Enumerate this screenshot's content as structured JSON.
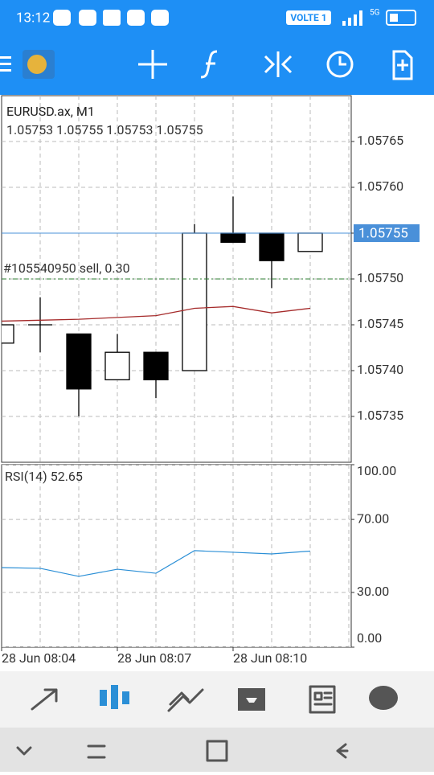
{
  "status_bar": {
    "time": "13:12",
    "network": "VOLTE 1",
    "signal": "5G"
  },
  "chart_data": [
    {
      "type": "candlestick",
      "title": "EURUSD.ax, M1",
      "subtitle": "1.05753 1.05755 1.05753 1.05755",
      "categories": [
        "28 Jun 08:04",
        null,
        null,
        "28 Jun 08:07",
        null,
        null,
        "28 Jun 08:10",
        null,
        null
      ],
      "open": [
        1.05743,
        1.05745,
        1.05744,
        1.05739,
        1.05742,
        1.0574,
        1.05755,
        1.05755,
        1.05753
      ],
      "high": [
        1.05745,
        1.05748,
        1.05744,
        1.05744,
        1.05742,
        1.05756,
        1.05759,
        1.05755,
        1.05755
      ],
      "low": [
        1.05743,
        1.05742,
        1.05735,
        1.05739,
        1.05737,
        1.0574,
        1.05754,
        1.05749,
        1.05753
      ],
      "close": [
        1.05745,
        1.05745,
        1.05738,
        1.05742,
        1.05739,
        1.05755,
        1.05754,
        1.05752,
        1.05755
      ],
      "up_color": "#ffffff",
      "down_color": "#000000",
      "ma": {
        "color": "#a52a2a",
        "values": [
          1.057454,
          1.057455,
          1.057456,
          1.057458,
          1.05746,
          1.057468,
          1.05747,
          1.057463,
          1.057468
        ]
      },
      "last_price": 1.05755,
      "last_price_color": "#4a90d9",
      "order_label": "#105540950 sell, 0.30",
      "order_price": 1.0575,
      "order_color": "#2e7d32",
      "ylim": [
        1.0573,
        1.0577
      ],
      "yticks": [
        1.05735,
        {
          "value": 1.0574,
          "label": "1.05740"
        },
        1.05745,
        {
          "value": 1.0575,
          "label": "1.05750"
        },
        1.05755,
        {
          "value": 1.0576,
          "label": "1.05760"
        },
        1.05765
      ],
      "grid": true
    },
    {
      "type": "line",
      "title": "RSI(14) 52.65",
      "color": "#2b8fd6",
      "values": [
        43.6,
        43.2,
        38.8,
        42.7,
        40.5,
        52.9,
        52.0,
        51.1,
        52.65
      ],
      "ylim": [
        0,
        100
      ],
      "yticks": [
        {
          "value": 0,
          "label": "0.00"
        },
        {
          "value": 30,
          "label": "30.00"
        },
        {
          "value": 70,
          "label": "70.00"
        },
        {
          "value": 100,
          "label": "100.00"
        }
      ],
      "grid": true
    }
  ]
}
